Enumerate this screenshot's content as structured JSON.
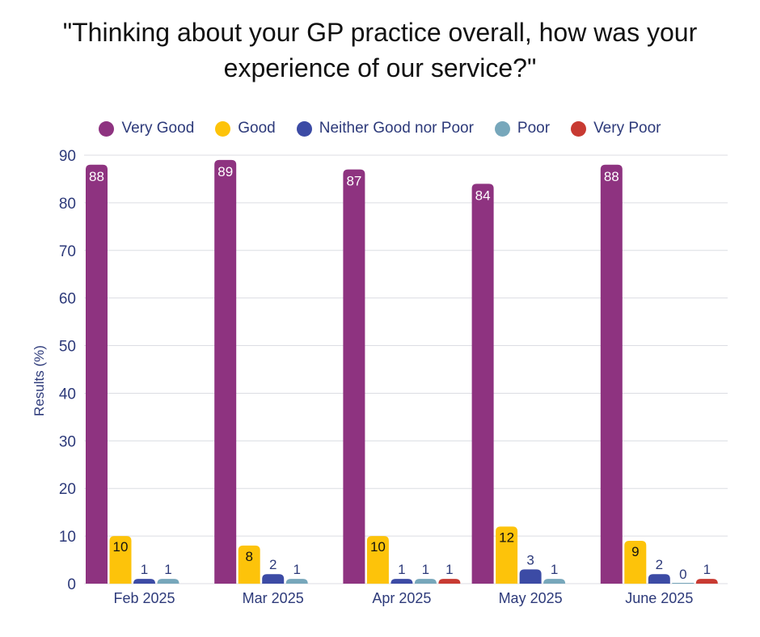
{
  "chart_data": {
    "type": "bar",
    "title_lines": [
      "\"Thinking about your GP practice overall, how was your",
      "experience of our service?\""
    ],
    "xlabel": "",
    "ylabel": "Results (%)",
    "ylim": [
      0,
      90
    ],
    "yticks": [
      0,
      10,
      20,
      30,
      40,
      50,
      60,
      70,
      80,
      90
    ],
    "grid": true,
    "legend_position": "top",
    "categories": [
      "Feb 2025",
      "Mar 2025",
      "Apr 2025",
      "May 2025",
      "June 2025"
    ],
    "series": [
      {
        "name": "Very Good",
        "color": "#8e3380",
        "values": [
          88,
          89,
          87,
          84,
          88
        ]
      },
      {
        "name": "Good",
        "color": "#fdc30a",
        "values": [
          10,
          8,
          10,
          12,
          9
        ]
      },
      {
        "name": "Neither Good nor Poor",
        "color": "#3c4ba5",
        "values": [
          1,
          2,
          1,
          3,
          2
        ]
      },
      {
        "name": "Poor",
        "color": "#77a7bb",
        "values": [
          1,
          1,
          1,
          1,
          0
        ]
      },
      {
        "name": "Very Poor",
        "color": "#c83a32",
        "values": [
          null,
          null,
          1,
          null,
          1
        ]
      }
    ],
    "label_colors": {
      "Very Good": "#ffffff",
      "Good": "#111111",
      "Neither Good nor Poor": "#2d3a7a",
      "Poor": "#2d3a7a",
      "Very Poor": "#2d3a7a"
    }
  }
}
